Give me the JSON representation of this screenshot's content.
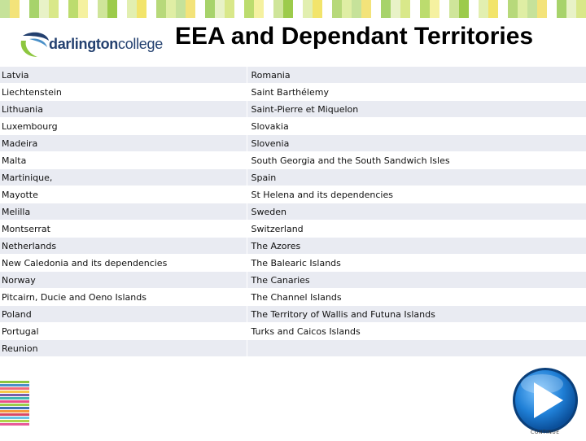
{
  "header": {
    "title": "EEA and Dependant Territories",
    "logo_text_bold": "darlington",
    "logo_text_regular": "college"
  },
  "colors": {
    "brand_navy": "#23406f",
    "brand_green": "#8dc63f",
    "row_shade": "#e9ebf2",
    "play_blue": "#1f7fd6"
  },
  "table": {
    "rows": [
      [
        "Latvia",
        "Romania"
      ],
      [
        "Liechtenstein",
        "Saint Barthélemy"
      ],
      [
        "Lithuania",
        "Saint-Pierre et Miquelon"
      ],
      [
        "Luxembourg",
        "Slovakia"
      ],
      [
        "Madeira",
        "Slovenia"
      ],
      [
        "Malta",
        "South Georgia and the South Sandwich Isles"
      ],
      [
        "Martinique,",
        "Spain"
      ],
      [
        "Mayotte",
        "St Helena and its dependencies"
      ],
      [
        "Melilla",
        "Sweden"
      ],
      [
        "Montserrat",
        "Switzerland"
      ],
      [
        "Netherlands",
        "The Azores"
      ],
      [
        "New Caledonia and its dependencies",
        "The Balearic Islands"
      ],
      [
        "Norway",
        "The Canaries"
      ],
      [
        "Pitcairn, Ducie and Oeno Islands",
        "The Channel Islands"
      ],
      [
        "Poland",
        "The Territory of Wallis and Futuna Islands"
      ],
      [
        "Portugal",
        "Turks and Caicos Islands"
      ],
      [
        "Reunion",
        ""
      ]
    ]
  },
  "continue_button": {
    "label": "CONTINUE",
    "icon": "play-icon"
  }
}
